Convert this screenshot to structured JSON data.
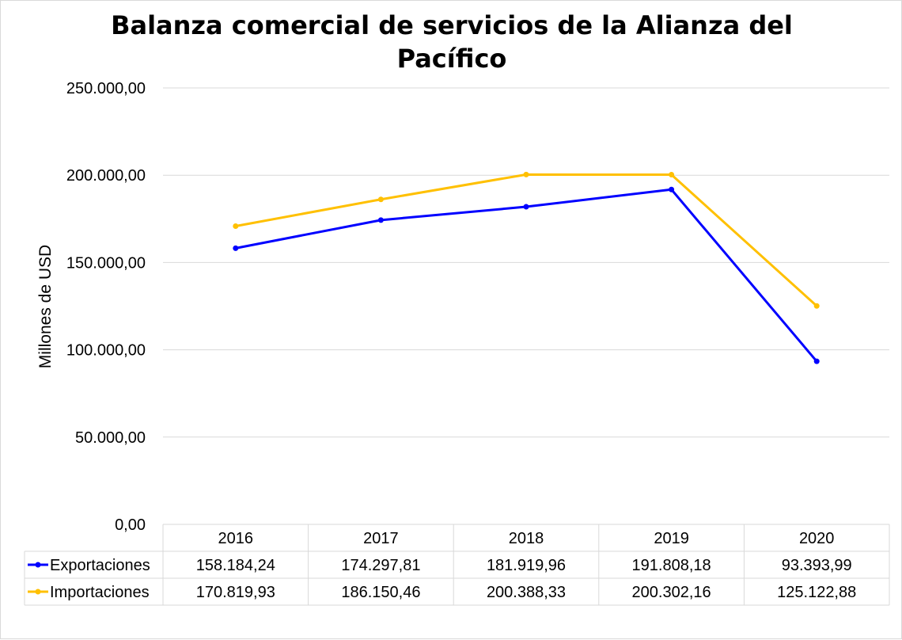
{
  "chart_data": {
    "type": "line",
    "title": "Balanza comercial de servicios de la Alianza del Pacífico",
    "ylabel": "Millones de USD",
    "xlabel": "",
    "categories": [
      "2016",
      "2017",
      "2018",
      "2019",
      "2020"
    ],
    "ylim": [
      0,
      250000
    ],
    "yticks": [
      0,
      50000,
      100000,
      150000,
      200000,
      250000
    ],
    "ytick_labels": [
      "0,00",
      "50.000,00",
      "100.000,00",
      "150.000,00",
      "200.000,00",
      "250.000,00"
    ],
    "grid": true,
    "legend": "data-table",
    "series": [
      {
        "name": "Exportaciones",
        "color": "#0000ff",
        "values": [
          158184.24,
          174297.81,
          181919.96,
          191808.18,
          93393.99
        ],
        "labels": [
          "158.184,24",
          "174.297,81",
          "181.919,96",
          "191.808,18",
          "93.393,99"
        ]
      },
      {
        "name": "Importaciones",
        "color": "#ffc000",
        "values": [
          170819.93,
          186150.46,
          200388.33,
          200302.16,
          125122.88
        ],
        "labels": [
          "170.819,93",
          "186.150,46",
          "200.388,33",
          "200.302,16",
          "125.122,88"
        ]
      }
    ]
  }
}
